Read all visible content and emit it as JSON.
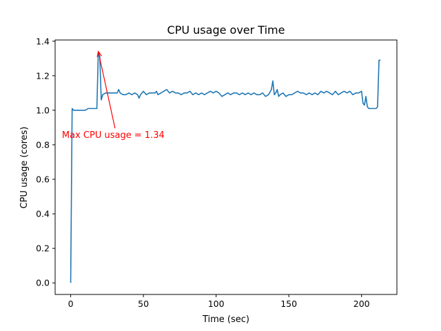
{
  "chart_data": {
    "type": "line",
    "title": "CPU usage over Time",
    "xlabel": "Time (sec)",
    "ylabel": "CPU usage (cores)",
    "xlim": [
      -10.7,
      224.3
    ],
    "ylim": [
      -0.067,
      1.407
    ],
    "xticks": [
      0,
      50,
      100,
      150,
      200
    ],
    "xtick_labels": [
      "0",
      "50",
      "100",
      "150",
      "200"
    ],
    "yticks": [
      0.0,
      0.2,
      0.4,
      0.6,
      0.8,
      1.0,
      1.2,
      1.4
    ],
    "ytick_labels": [
      "0.0",
      "0.2",
      "0.4",
      "0.6",
      "0.8",
      "1.0",
      "1.2",
      "1.4"
    ],
    "grid": false,
    "series": [
      {
        "color": "#1f77b4",
        "x": [
          0,
          1,
          2,
          4,
          6,
          8,
          10,
          12,
          14,
          16,
          18,
          19,
          20,
          21,
          22,
          24,
          26,
          28,
          30,
          31,
          32,
          33,
          34,
          36,
          38,
          40,
          42,
          44,
          46,
          47,
          48,
          49,
          50,
          52,
          54,
          56,
          58,
          59,
          60,
          62,
          64,
          66,
          68,
          70,
          72,
          74,
          76,
          78,
          80,
          82,
          84,
          86,
          88,
          90,
          92,
          94,
          96,
          98,
          100,
          102,
          104,
          106,
          108,
          110,
          112,
          114,
          116,
          118,
          120,
          122,
          124,
          126,
          128,
          130,
          132,
          134,
          136,
          138,
          139,
          140,
          141,
          142,
          143,
          144,
          146,
          148,
          150,
          152,
          154,
          156,
          158,
          160,
          162,
          164,
          166,
          168,
          170,
          172,
          174,
          176,
          178,
          180,
          182,
          184,
          186,
          188,
          190,
          192,
          194,
          196,
          198,
          200,
          201,
          202,
          203,
          204,
          205,
          206,
          208,
          209,
          210,
          211,
          212,
          213
        ],
        "y": [
          0.0,
          1.01,
          1.0,
          1.0,
          1.0,
          1.0,
          1.0,
          1.01,
          1.01,
          1.01,
          1.01,
          1.34,
          1.31,
          1.06,
          1.09,
          1.1,
          1.1,
          1.1,
          1.1,
          1.1,
          1.1,
          1.12,
          1.1,
          1.09,
          1.09,
          1.1,
          1.09,
          1.1,
          1.09,
          1.07,
          1.09,
          1.1,
          1.11,
          1.09,
          1.1,
          1.1,
          1.1,
          1.11,
          1.09,
          1.1,
          1.11,
          1.12,
          1.1,
          1.11,
          1.1,
          1.1,
          1.09,
          1.1,
          1.1,
          1.11,
          1.09,
          1.1,
          1.09,
          1.1,
          1.09,
          1.1,
          1.11,
          1.1,
          1.11,
          1.1,
          1.08,
          1.09,
          1.1,
          1.09,
          1.1,
          1.1,
          1.09,
          1.1,
          1.09,
          1.1,
          1.09,
          1.1,
          1.09,
          1.09,
          1.1,
          1.08,
          1.09,
          1.12,
          1.17,
          1.09,
          1.1,
          1.12,
          1.08,
          1.09,
          1.1,
          1.08,
          1.09,
          1.09,
          1.1,
          1.11,
          1.1,
          1.1,
          1.09,
          1.1,
          1.09,
          1.1,
          1.09,
          1.11,
          1.1,
          1.11,
          1.1,
          1.09,
          1.11,
          1.09,
          1.1,
          1.11,
          1.1,
          1.11,
          1.09,
          1.1,
          1.1,
          1.11,
          1.04,
          1.03,
          1.08,
          1.02,
          1.01,
          1.01,
          1.01,
          1.01,
          1.01,
          1.02,
          1.29,
          1.29
        ]
      }
    ],
    "annotation": {
      "text": "Max CPU usage = 1.34",
      "color": "#ff0000",
      "xy": [
        19,
        1.34
      ],
      "xytext": [
        -6,
        0.84
      ]
    }
  }
}
